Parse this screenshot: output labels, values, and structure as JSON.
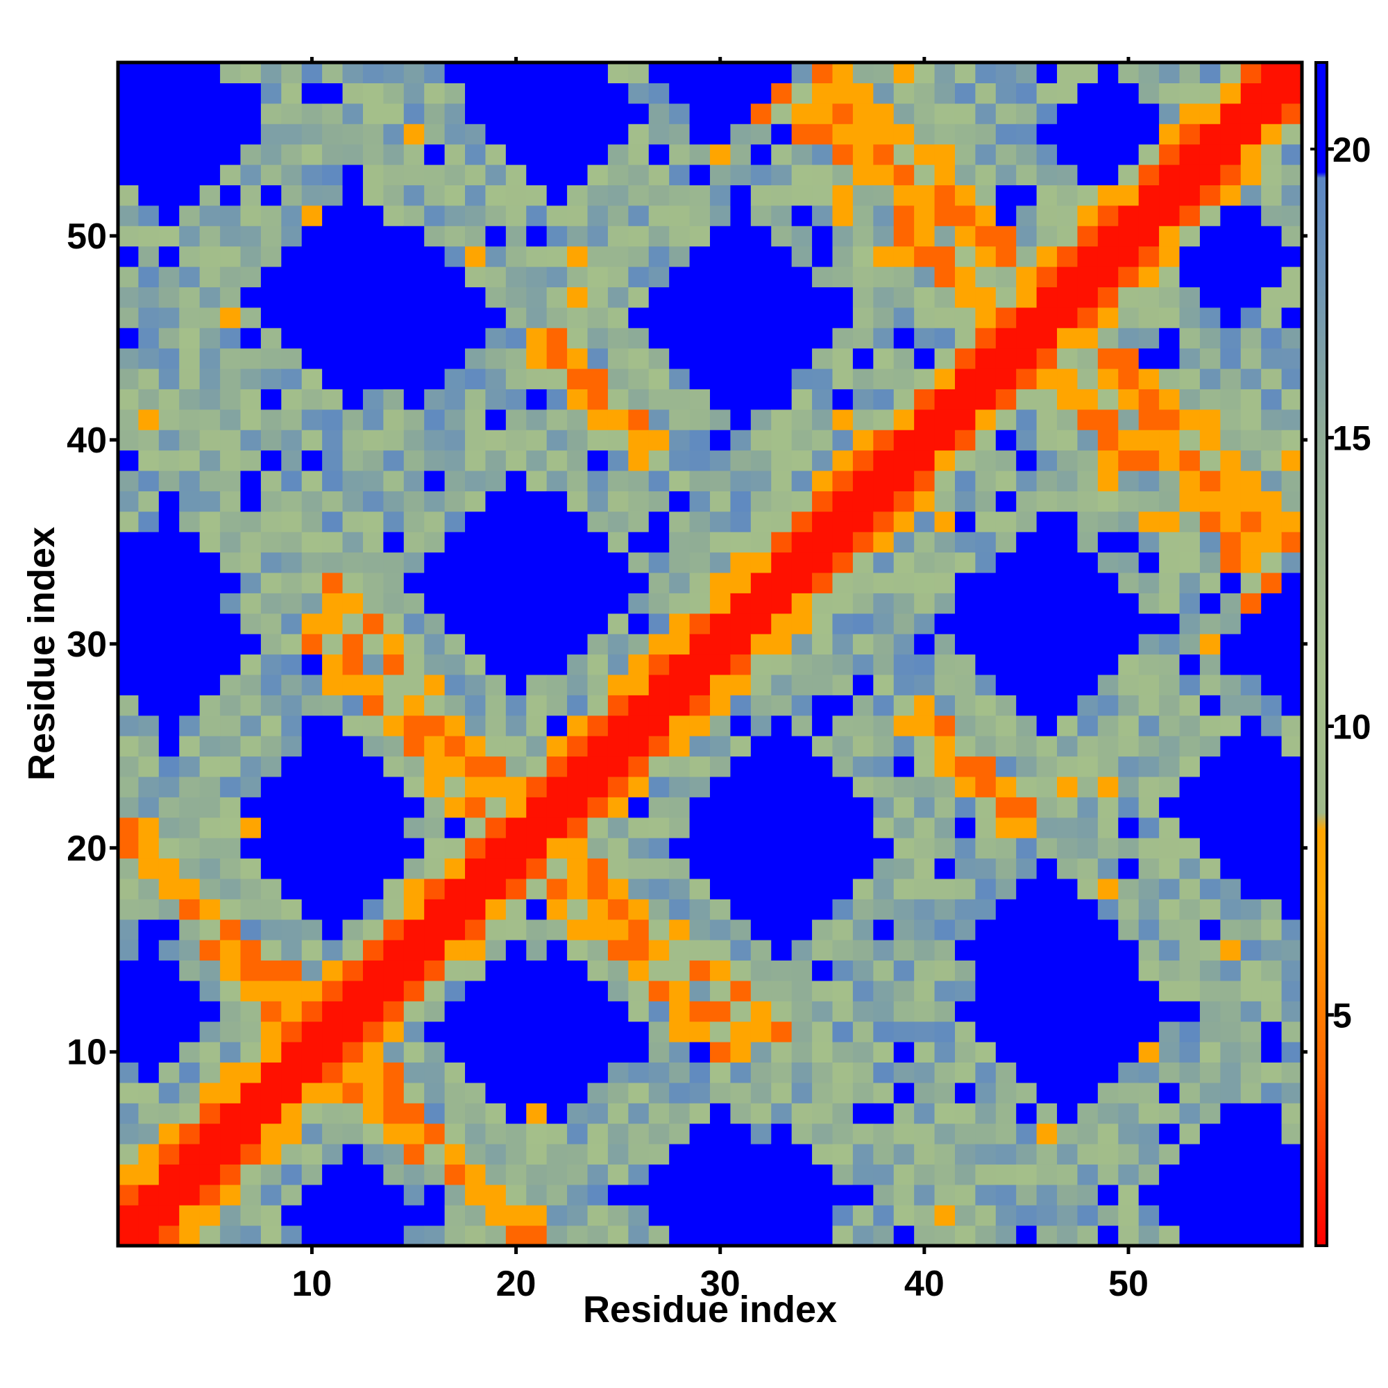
{
  "chart_data": {
    "type": "heatmap",
    "title": "",
    "xlabel": "Residue index",
    "ylabel": "Residue index",
    "n_residues": 58,
    "x_range": [
      1,
      58
    ],
    "y_range": [
      1,
      58
    ],
    "x_ticks": [
      "10",
      "20",
      "30",
      "40",
      "50"
    ],
    "x_tick_values": [
      10,
      20,
      30,
      40,
      50
    ],
    "y_ticks": [
      "10",
      "20",
      "30",
      "40",
      "50"
    ],
    "y_tick_values": [
      10,
      20,
      30,
      40,
      50
    ],
    "colorbar": {
      "ticks": [
        "5",
        "10",
        "15",
        "20"
      ],
      "tick_values": [
        5,
        10,
        15,
        20
      ],
      "range": [
        1,
        21.5
      ],
      "stops": [
        {
          "value": 1,
          "color": "#ff0000"
        },
        {
          "value": 4,
          "color": "#ff6600"
        },
        {
          "value": 7,
          "color": "#ffa500"
        },
        {
          "value": 8.2,
          "color": "#ffa500"
        },
        {
          "value": 8.5,
          "color": "#9fb98a"
        },
        {
          "value": 11,
          "color": "#a4bf8a"
        },
        {
          "value": 15,
          "color": "#8fac96"
        },
        {
          "value": 18,
          "color": "#6a92b8"
        },
        {
          "value": 19.5,
          "color": "#5b86c4"
        },
        {
          "value": 19.6,
          "color": "#0000ff"
        },
        {
          "value": 21.5,
          "color": "#0000ff"
        }
      ]
    },
    "blue_blocks": [
      {
        "center": [
          31,
          46
        ],
        "radius": 5
      },
      {
        "center": [
          15,
          46
        ],
        "radius": 4
      },
      {
        "center": [
          22,
          33
        ],
        "radius": 4
      },
      {
        "center": [
          46,
          31
        ],
        "radius": 5
      },
      {
        "center": [
          33,
          20
        ],
        "radius": 5
      },
      {
        "center": [
          11,
          20
        ],
        "radius": 4
      },
      {
        "center": [
          47,
          12
        ],
        "radius": 5
      },
      {
        "center": [
          22,
          11
        ],
        "radius": 4
      },
      {
        "center": [
          33,
          3
        ],
        "radius": 3
      },
      {
        "center": [
          49,
          55
        ],
        "radius": 3
      },
      {
        "center": [
          22,
          56
        ],
        "radius": 4
      },
      {
        "center": [
          3,
          30
        ],
        "radius": 4
      },
      {
        "center": [
          58,
          30
        ],
        "radius": 3
      },
      {
        "center": [
          3,
          55
        ],
        "radius": 4
      },
      {
        "center": [
          56,
          3
        ],
        "radius": 4
      },
      {
        "center": [
          58,
          20
        ],
        "radius": 3
      },
      {
        "center": [
          2,
          12
        ],
        "radius": 3
      }
    ],
    "orange_bands": [
      {
        "from": [
          35,
          58
        ],
        "to": [
          44,
          49
        ]
      },
      {
        "from": [
          21,
          45
        ],
        "to": [
          27,
          39
        ]
      },
      {
        "from": [
          11,
          33
        ],
        "to": [
          19,
          23
        ]
      },
      {
        "from": [
          1,
          21
        ],
        "to": [
          7,
          14
        ]
      },
      {
        "from": [
          7,
          14
        ],
        "to": [
          13,
          12
        ]
      },
      {
        "from": [
          12,
          9
        ],
        "to": [
          21,
          1
        ]
      },
      {
        "from": [
          22,
          18
        ],
        "to": [
          31,
          10
        ]
      },
      {
        "from": [
          39,
          27
        ],
        "to": [
          45,
          21
        ]
      },
      {
        "from": [
          46,
          43
        ],
        "to": [
          51,
          39
        ]
      },
      {
        "from": [
          52,
          40
        ],
        "to": [
          57,
          32
        ]
      }
    ]
  }
}
